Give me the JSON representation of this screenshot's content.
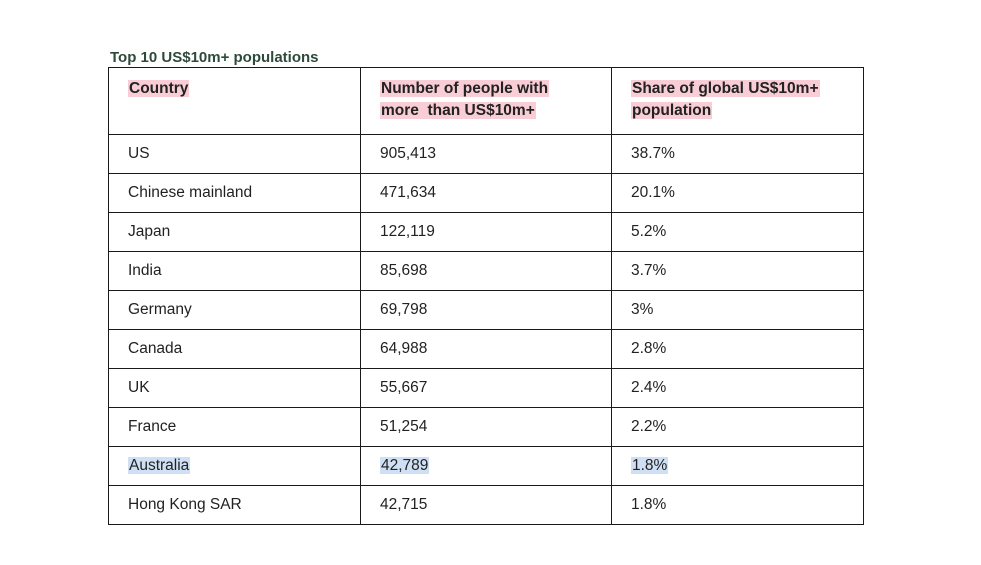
{
  "title": "Top 10 US$10m+ populations",
  "table": {
    "headers": [
      "Country",
      "Number of people with more  than US$10m+",
      "Share of global US$10m+ population"
    ],
    "header_lines": [
      [
        "Country"
      ],
      [
        "Number of people with",
        "more  than US$10m+"
      ],
      [
        "Share of global US$10m+",
        "population"
      ]
    ],
    "rows": [
      {
        "country": "US",
        "people": "905,413",
        "share": "38.7%"
      },
      {
        "country": "Chinese mainland",
        "people": "471,634",
        "share": "20.1%"
      },
      {
        "country": "Japan",
        "people": "122,119",
        "share": "5.2%"
      },
      {
        "country": "India",
        "people": "85,698",
        "share": "3.7%"
      },
      {
        "country": "Germany",
        "people": "69,798",
        "share": "3%"
      },
      {
        "country": "Canada",
        "people": "64,988",
        "share": "2.8%"
      },
      {
        "country": "UK",
        "people": "55,667",
        "share": "2.4%"
      },
      {
        "country": "France",
        "people": "51,254",
        "share": "2.2%"
      },
      {
        "country": "Australia",
        "people": "42,789",
        "share": "1.8%"
      },
      {
        "country": "Hong Kong SAR",
        "people": "42,715",
        "share": "1.8%"
      }
    ]
  },
  "colors": {
    "header_highlight": "#f8cdd6",
    "row_highlight": "#cfe0f5",
    "title": "#2e4a3a"
  }
}
